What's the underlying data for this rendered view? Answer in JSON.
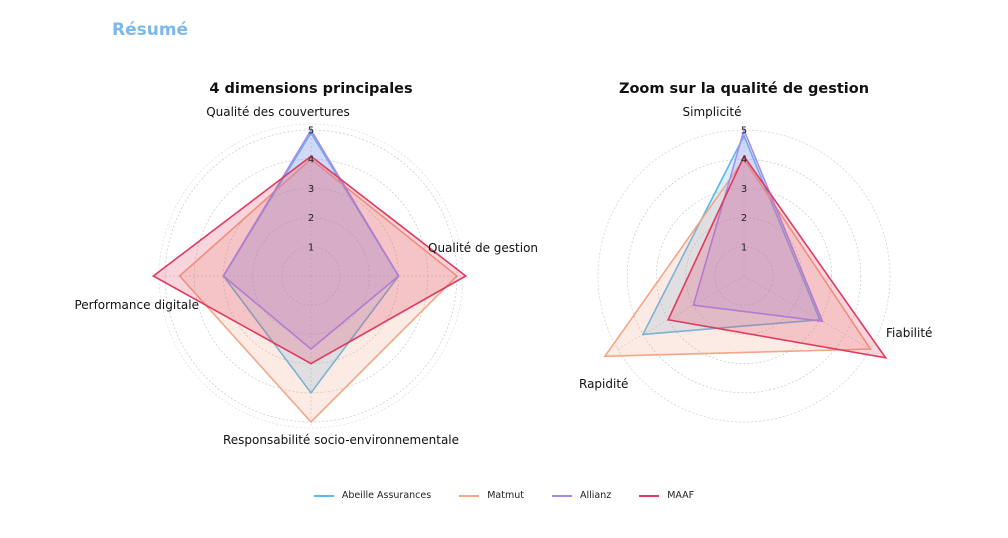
{
  "page": {
    "title": "Résumé"
  },
  "chart_data": [
    {
      "type": "radar",
      "title": "4 dimensions principales",
      "axes": [
        "Qualité des couvertures",
        "Qualité de gestion",
        "Responsabilité socio-environnementale",
        "Performance digitale"
      ],
      "rticks": [
        1,
        2,
        3,
        4,
        5
      ],
      "rlim": [
        0,
        5
      ],
      "series": [
        {
          "name": "Abeille Assurances",
          "values": [
            4.9,
            3.0,
            4.0,
            3.0
          ]
        },
        {
          "name": "Matmut",
          "values": [
            4.0,
            5.0,
            5.0,
            4.5
          ]
        },
        {
          "name": "Allianz",
          "values": [
            5.0,
            3.0,
            2.5,
            3.0
          ]
        },
        {
          "name": "MAAF",
          "values": [
            4.1,
            5.3,
            3.0,
            5.4
          ]
        }
      ]
    },
    {
      "type": "radar",
      "title": "Zoom sur la qualité de gestion",
      "axes": [
        "Simplicité",
        "Fiabilité",
        "Rapidité"
      ],
      "rticks": [
        1,
        2,
        3,
        4,
        5
      ],
      "rlim": [
        0,
        5
      ],
      "series": [
        {
          "name": "Abeille Assurances",
          "values": [
            4.8,
            3.0,
            4.0
          ]
        },
        {
          "name": "Matmut",
          "values": [
            4.0,
            5.0,
            5.5
          ]
        },
        {
          "name": "Allianz",
          "values": [
            5.0,
            3.1,
            2.0
          ]
        },
        {
          "name": "MAAF",
          "values": [
            4.1,
            5.6,
            3.0
          ]
        }
      ]
    }
  ],
  "legend": {
    "placement": "bottom-center"
  },
  "colors": {
    "Abeille Assurances": "#5bb8e8",
    "Matmut": "#f2a686",
    "Allianz": "#a98cf0",
    "MAAF": "#e03a5f"
  }
}
